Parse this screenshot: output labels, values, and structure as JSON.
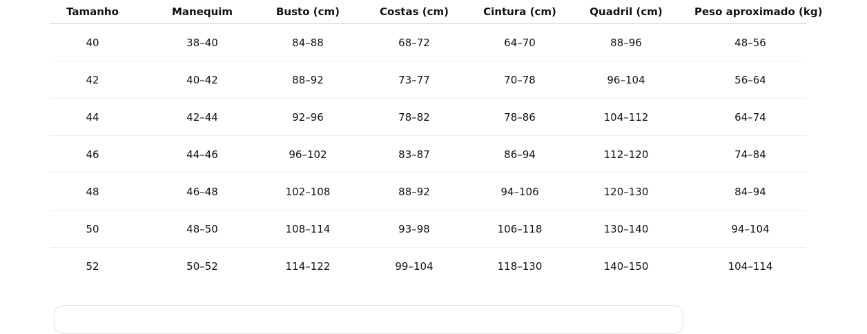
{
  "table": {
    "header": [
      "Tamanho",
      "Manequim",
      "Busto (cm)",
      "Costas (cm)",
      "Cintura (cm)",
      "Quadril (cm)",
      "Peso aproximado (kg)"
    ],
    "rows": [
      [
        "40",
        "38–40",
        "84–88",
        "68–72",
        "64–70",
        "88–96",
        "48–56"
      ],
      [
        "42",
        "40–42",
        "88–92",
        "73–77",
        "70–78",
        "96–104",
        "56–64"
      ],
      [
        "44",
        "42–44",
        "92–96",
        "78–82",
        "78–86",
        "104–112",
        "64–74"
      ],
      [
        "46",
        "44–46",
        "96–102",
        "83–87",
        "86–94",
        "112–120",
        "74–84"
      ],
      [
        "48",
        "46–48",
        "102–108",
        "88–92",
        "94–106",
        "120–130",
        "84–94"
      ],
      [
        "50",
        "48–50",
        "108–114",
        "93–98",
        "106–118",
        "130–140",
        "94–104"
      ],
      [
        "52",
        "50–52",
        "114–122",
        "99–104",
        "118–130",
        "140–150",
        "104–114"
      ]
    ]
  }
}
